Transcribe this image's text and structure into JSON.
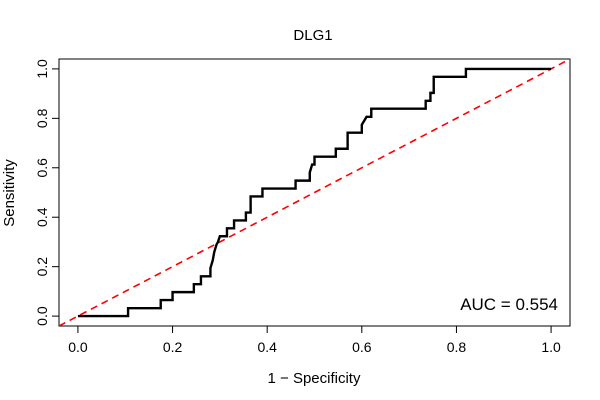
{
  "chart_data": {
    "type": "line",
    "title": "DLG1",
    "xlabel": "1 − Specificity",
    "ylabel": "Sensitivity",
    "xlim": [
      -0.04,
      1.04
    ],
    "ylim": [
      -0.04,
      1.04
    ],
    "xticks": [
      "0.0",
      "0.2",
      "0.4",
      "0.6",
      "0.8",
      "1.0"
    ],
    "yticks": [
      "0.0",
      "0.2",
      "0.4",
      "0.6",
      "0.8",
      "1.0"
    ],
    "grid": false,
    "annotation": "AUC = 0.554",
    "series": [
      {
        "color": "#000000",
        "style": "solid",
        "x": [
          0.0,
          0.106,
          0.106,
          0.175,
          0.175,
          0.2,
          0.2,
          0.245,
          0.245,
          0.26,
          0.26,
          0.28,
          0.28,
          0.285,
          0.288,
          0.293,
          0.296,
          0.3,
          0.3,
          0.315,
          0.315,
          0.33,
          0.33,
          0.355,
          0.355,
          0.365,
          0.365,
          0.39,
          0.39,
          0.46,
          0.46,
          0.49,
          0.49,
          0.495,
          0.5,
          0.5,
          0.545,
          0.545,
          0.57,
          0.57,
          0.6,
          0.6,
          0.61,
          0.62,
          0.62,
          0.735,
          0.735,
          0.745,
          0.745,
          0.752,
          0.752,
          0.82,
          0.82,
          1.0
        ],
        "y": [
          0.0,
          0.0,
          0.032,
          0.032,
          0.065,
          0.065,
          0.097,
          0.097,
          0.129,
          0.129,
          0.161,
          0.161,
          0.194,
          0.226,
          0.258,
          0.29,
          0.3,
          0.323,
          0.323,
          0.323,
          0.355,
          0.355,
          0.387,
          0.387,
          0.419,
          0.419,
          0.484,
          0.484,
          0.516,
          0.516,
          0.548,
          0.548,
          0.581,
          0.613,
          0.613,
          0.645,
          0.645,
          0.677,
          0.677,
          0.742,
          0.742,
          0.774,
          0.806,
          0.806,
          0.839,
          0.839,
          0.871,
          0.871,
          0.903,
          0.903,
          0.968,
          0.968,
          1.0,
          1.0
        ]
      },
      {
        "color": "#ff0000",
        "style": "dashed",
        "x": [
          -0.04,
          1.04
        ],
        "y": [
          -0.04,
          1.04
        ]
      }
    ]
  }
}
